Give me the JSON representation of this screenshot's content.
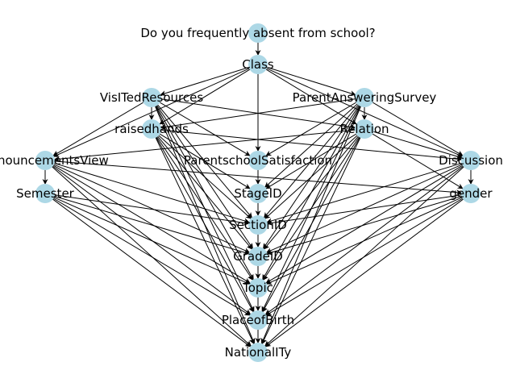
{
  "nodes": [
    {
      "id": "absence",
      "label": "Do you frequently absent from school?"
    },
    {
      "id": "class",
      "label": "Class"
    },
    {
      "id": "visited",
      "label": "VisITedResources"
    },
    {
      "id": "parentsurvey",
      "label": "ParentAnsweringSurvey"
    },
    {
      "id": "raised",
      "label": "raisedhands"
    },
    {
      "id": "relation",
      "label": "Relation"
    },
    {
      "id": "announce",
      "label": "AnnouncementsView"
    },
    {
      "id": "pss",
      "label": "ParentschoolSatisfaction"
    },
    {
      "id": "discussion",
      "label": "Discussion"
    },
    {
      "id": "semester",
      "label": "Semester"
    },
    {
      "id": "stage",
      "label": "StageID"
    },
    {
      "id": "gender",
      "label": "gender"
    },
    {
      "id": "section",
      "label": "SectionID"
    },
    {
      "id": "grade",
      "label": "GradeID"
    },
    {
      "id": "topic",
      "label": "Topic"
    },
    {
      "id": "birth",
      "label": "PlaceofBirth"
    },
    {
      "id": "nationality",
      "label": "NationalITy"
    }
  ],
  "edges": [
    [
      "absence",
      "class"
    ],
    [
      "class",
      "visited"
    ],
    [
      "class",
      "parentsurvey"
    ],
    [
      "class",
      "raised"
    ],
    [
      "class",
      "relation"
    ],
    [
      "class",
      "announce"
    ],
    [
      "class",
      "pss"
    ],
    [
      "class",
      "discussion"
    ],
    [
      "visited",
      "raised"
    ],
    [
      "visited",
      "relation"
    ],
    [
      "visited",
      "announce"
    ],
    [
      "visited",
      "pss"
    ],
    [
      "visited",
      "section"
    ],
    [
      "visited",
      "grade"
    ],
    [
      "visited",
      "topic"
    ],
    [
      "visited",
      "birth"
    ],
    [
      "visited",
      "nationality"
    ],
    [
      "parentsurvey",
      "relation"
    ],
    [
      "parentsurvey",
      "raised"
    ],
    [
      "parentsurvey",
      "pss"
    ],
    [
      "parentsurvey",
      "discussion"
    ],
    [
      "parentsurvey",
      "stage"
    ],
    [
      "parentsurvey",
      "section"
    ],
    [
      "parentsurvey",
      "grade"
    ],
    [
      "parentsurvey",
      "topic"
    ],
    [
      "parentsurvey",
      "birth"
    ],
    [
      "parentsurvey",
      "nationality"
    ],
    [
      "raised",
      "discussion"
    ],
    [
      "raised",
      "stage"
    ],
    [
      "raised",
      "section"
    ],
    [
      "raised",
      "grade"
    ],
    [
      "raised",
      "topic"
    ],
    [
      "raised",
      "birth"
    ],
    [
      "raised",
      "nationality"
    ],
    [
      "relation",
      "announce"
    ],
    [
      "relation",
      "discussion"
    ],
    [
      "relation",
      "gender"
    ],
    [
      "relation",
      "stage"
    ],
    [
      "relation",
      "section"
    ],
    [
      "relation",
      "grade"
    ],
    [
      "relation",
      "topic"
    ],
    [
      "relation",
      "birth"
    ],
    [
      "relation",
      "nationality"
    ],
    [
      "announce",
      "semester"
    ],
    [
      "announce",
      "section"
    ],
    [
      "announce",
      "grade"
    ],
    [
      "announce",
      "topic"
    ],
    [
      "announce",
      "birth"
    ],
    [
      "announce",
      "nationality"
    ],
    [
      "announce",
      "gender"
    ],
    [
      "pss",
      "stage"
    ],
    [
      "discussion",
      "gender"
    ],
    [
      "discussion",
      "section"
    ],
    [
      "discussion",
      "grade"
    ],
    [
      "discussion",
      "topic"
    ],
    [
      "discussion",
      "birth"
    ],
    [
      "discussion",
      "nationality"
    ],
    [
      "semester",
      "section"
    ],
    [
      "semester",
      "grade"
    ],
    [
      "semester",
      "topic"
    ],
    [
      "semester",
      "birth"
    ],
    [
      "semester",
      "nationality"
    ],
    [
      "stage",
      "section"
    ],
    [
      "gender",
      "section"
    ],
    [
      "gender",
      "grade"
    ],
    [
      "gender",
      "topic"
    ],
    [
      "gender",
      "birth"
    ],
    [
      "gender",
      "nationality"
    ],
    [
      "section",
      "grade"
    ],
    [
      "grade",
      "topic"
    ],
    [
      "topic",
      "birth"
    ],
    [
      "birth",
      "nationality"
    ]
  ]
}
